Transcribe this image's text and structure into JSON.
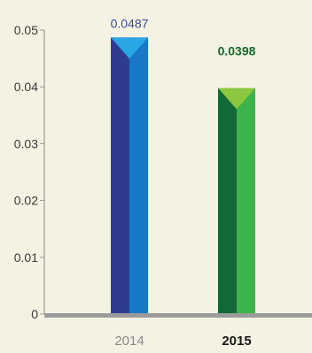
{
  "chart_data": {
    "type": "bar",
    "categories": [
      "2014",
      "2015"
    ],
    "values": [
      0.0487,
      0.0398
    ],
    "value_labels": [
      "0.0487",
      "0.0398"
    ],
    "ylim": [
      0,
      0.05
    ],
    "yticks": [
      "0",
      "0.01",
      "0.02",
      "0.03",
      "0.04",
      "0.05"
    ],
    "ytick_values": [
      0,
      0.01,
      0.02,
      0.03,
      0.04,
      0.05
    ],
    "title": "",
    "xlabel": "",
    "ylabel": "",
    "grid": false,
    "legend": "none"
  },
  "colors": {
    "background": "#f4f2e3",
    "axis": "#9b9b9b",
    "bar_2014_dark": "#2e3b8f",
    "bar_2014_light": "#1878c8",
    "bar_2014_cap": "#2aa6e4",
    "bar_2015_dark": "#116a35",
    "bar_2015_light": "#3db34b",
    "bar_2015_cap": "#8dc63f",
    "label_2014": "#3b4aa6",
    "label_2015": "#146b2e",
    "cat_2014": "#8a8a8a",
    "cat_2015": "#1a1a1a"
  }
}
